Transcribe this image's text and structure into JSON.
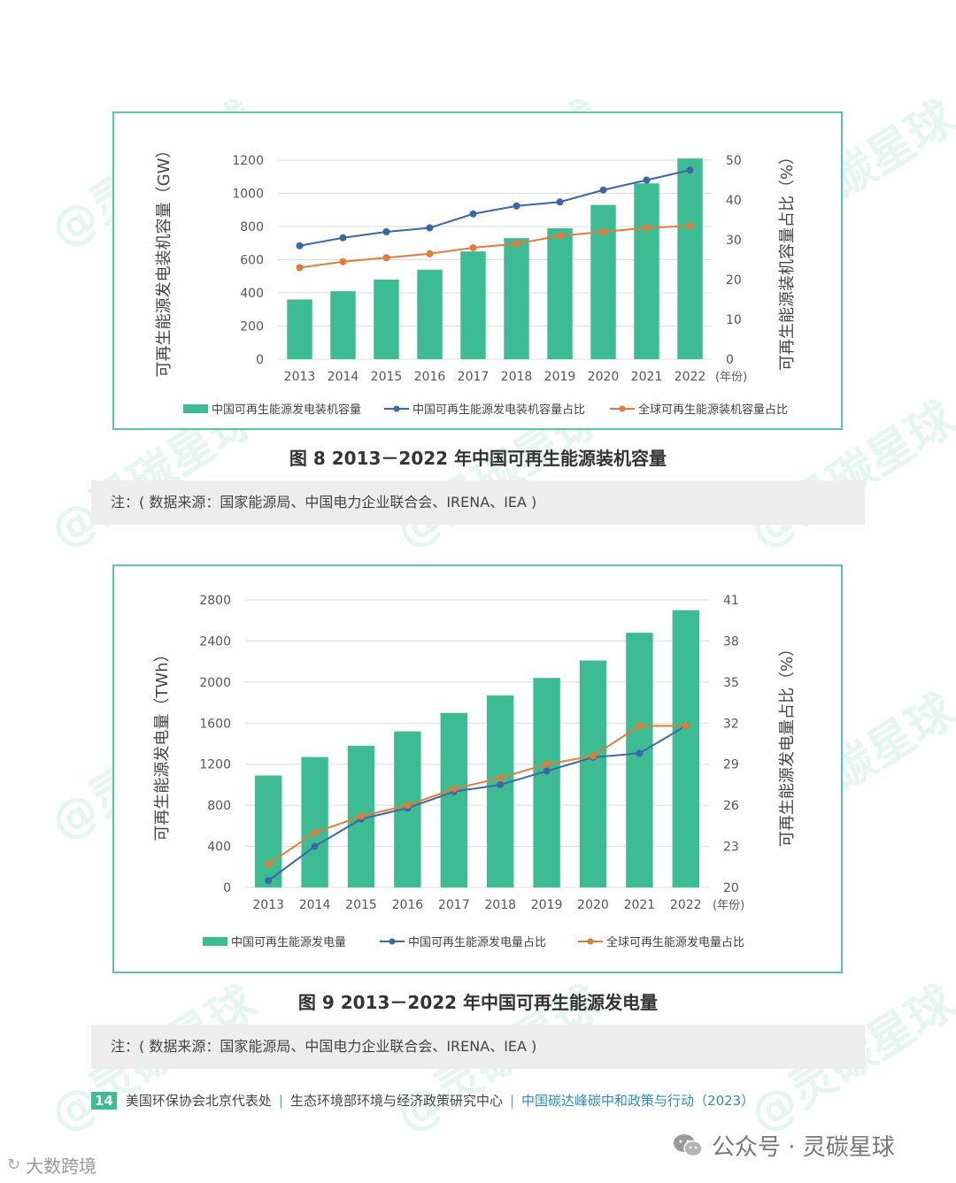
{
  "charts": [
    {
      "caption": "图 8   2013－2022 年中国可再生能源装机容量",
      "note": "注：( 数据来源：国家能源局、中国电力企业联合会、IRENA、IEA )",
      "chart_data": {
        "type": "bar",
        "categories": [
          "2013",
          "2014",
          "2015",
          "2016",
          "2017",
          "2018",
          "2019",
          "2020",
          "2021",
          "2022"
        ],
        "x_unit": "(年份)",
        "ylabel_left": "可再生能源发电装机容量（GW）",
        "ylabel_right": "可再生能源装机容量占比（%）",
        "ylim_left": [
          0,
          1200
        ],
        "yticks_left": [
          0,
          200,
          400,
          600,
          800,
          1000,
          1200
        ],
        "ylim_right": [
          0,
          50
        ],
        "yticks_right": [
          0,
          10,
          20,
          30,
          40,
          50
        ],
        "series": [
          {
            "name": "中国可再生能源发电装机容量",
            "kind": "bar",
            "axis": "left",
            "color": "#3dbb93",
            "values": [
              360,
              410,
              480,
              540,
              650,
              730,
              790,
              930,
              1060,
              1210
            ]
          },
          {
            "name": "中国可再生能源发电装机容量占比",
            "kind": "line",
            "axis": "right",
            "color": "#3a67a8",
            "values": [
              28.5,
              30.5,
              32.0,
              33.0,
              36.5,
              38.5,
              39.5,
              42.5,
              45.0,
              47.5
            ]
          },
          {
            "name": "全球可再生能源装机容量占比",
            "kind": "line",
            "axis": "right",
            "color": "#e07b3a",
            "values": [
              23.0,
              24.5,
              25.5,
              26.5,
              28.0,
              29.0,
              31.0,
              32.0,
              33.0,
              33.5
            ]
          }
        ],
        "grid": true,
        "legend": "bottom"
      }
    },
    {
      "caption": "图 9   2013－2022 年中国可再生能源发电量",
      "note": "注：( 数据来源：国家能源局、中国电力企业联合会、IRENA、IEA )",
      "chart_data": {
        "type": "bar",
        "categories": [
          "2013",
          "2014",
          "2015",
          "2016",
          "2017",
          "2018",
          "2019",
          "2020",
          "2021",
          "2022"
        ],
        "x_unit": "(年份)",
        "ylabel_left": "可再生能源发电量（TWh）",
        "ylabel_right": "可再生能源发电量占比（%）",
        "ylim_left": [
          0,
          2800
        ],
        "yticks_left": [
          0,
          400,
          800,
          1200,
          1600,
          2000,
          2400,
          2800
        ],
        "ylim_right": [
          20,
          41
        ],
        "yticks_right": [
          20,
          23,
          26,
          29,
          32,
          35,
          38,
          41
        ],
        "series": [
          {
            "name": "中国可再生能源发电量",
            "kind": "bar",
            "axis": "left",
            "color": "#3dbb93",
            "values": [
              1090,
              1270,
              1380,
              1520,
              1700,
              1870,
              2040,
              2210,
              2480,
              2700
            ]
          },
          {
            "name": "中国可再生能源发电量占比",
            "kind": "line",
            "axis": "right",
            "color": "#3a67a8",
            "values": [
              20.5,
              23.0,
              25.0,
              25.8,
              27.0,
              27.5,
              28.5,
              29.5,
              29.8,
              31.8
            ]
          },
          {
            "name": "全球可再生能源发电量占比",
            "kind": "line",
            "axis": "right",
            "color": "#e07b3a",
            "values": [
              21.7,
              24.0,
              25.2,
              26.0,
              27.2,
              28.0,
              29.0,
              29.6,
              31.8,
              31.8
            ]
          }
        ],
        "grid": true,
        "legend": "bottom"
      }
    }
  ],
  "footer": {
    "page_number": "14",
    "org1": "美国环保协会北京代表处",
    "org2": "生态环境部环境与经济政策研究中心",
    "report": "中国碳达峰碳中和政策与行动（2023）"
  },
  "wechat": "公众号 · 灵碳星球",
  "brand": "大数跨境",
  "watermark": "@灵碳星球"
}
